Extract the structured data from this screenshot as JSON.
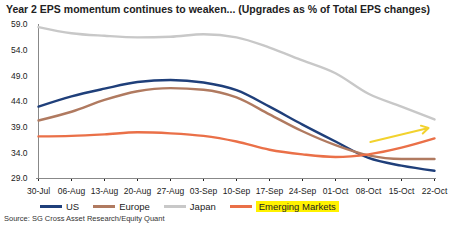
{
  "chart_data": {
    "type": "line",
    "title": "Year 2 EPS momentum continues to weaken... (Upgrades as % of Total EPS changes)",
    "caption": "Source: SG Cross Asset Research/Equity Quant",
    "x": [
      "30-Jul",
      "06-Aug",
      "13-Aug",
      "20-Aug",
      "27-Aug",
      "03-Sep",
      "10-Sep",
      "17-Sep",
      "24-Sep",
      "01-Oct",
      "08-Oct",
      "15-Oct",
      "22-Oct"
    ],
    "series": [
      {
        "name": "US",
        "color": "#1f3f7a",
        "values": [
          43.0,
          45.0,
          46.5,
          47.8,
          48.2,
          47.7,
          46.2,
          43.0,
          39.5,
          36.2,
          33.0,
          31.5,
          30.5
        ]
      },
      {
        "name": "Europe",
        "color": "#b07a60",
        "values": [
          40.3,
          42.0,
          44.3,
          46.0,
          46.6,
          46.3,
          44.8,
          41.5,
          38.2,
          35.5,
          33.5,
          32.8,
          32.8
        ]
      },
      {
        "name": "Japan",
        "color": "#c8c8c8",
        "values": [
          58.5,
          57.3,
          56.8,
          56.5,
          56.6,
          57.1,
          56.5,
          54.5,
          52.0,
          49.5,
          45.5,
          43.0,
          40.5
        ]
      },
      {
        "name": "Emerging Markets",
        "color": "#ea7048",
        "values": [
          37.2,
          37.3,
          37.6,
          38.0,
          37.8,
          37.3,
          36.2,
          34.6,
          33.7,
          33.2,
          33.7,
          35.0,
          36.8
        ]
      }
    ],
    "ylim": [
      29,
      59
    ],
    "yticks": [
      {
        "value": 29,
        "label": "29.0"
      },
      {
        "value": 34,
        "label": "34.0"
      },
      {
        "value": 39,
        "label": "39.0"
      },
      {
        "value": 44,
        "label": "44.0"
      },
      {
        "value": 49,
        "label": "49.0"
      },
      {
        "value": 54,
        "label": "54.0"
      },
      {
        "value": 59,
        "label": "59.0"
      }
    ],
    "grid": false,
    "legend": "bottom"
  }
}
